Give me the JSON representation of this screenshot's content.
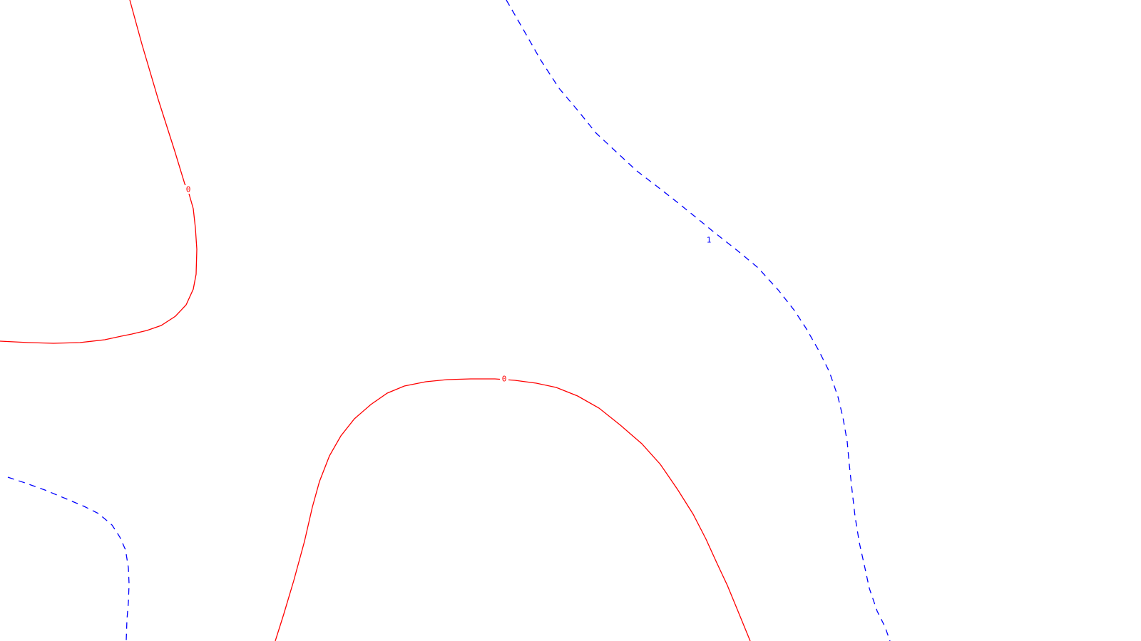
{
  "chart_data": {
    "type": "contour",
    "title": "",
    "xlabel": "",
    "ylabel": "",
    "grid": false,
    "legend": "none",
    "levels": [
      {
        "level": "0",
        "color": "#ff0000",
        "line_style": "solid",
        "label_count": 2
      },
      {
        "level": "1",
        "color": "#0000ff",
        "line_style": "dashed",
        "label_count": 1
      }
    ],
    "inline_labels": [
      {
        "text": "0",
        "level": "0",
        "color": "#ff0000"
      },
      {
        "text": "0",
        "level": "0",
        "color": "#ff0000"
      },
      {
        "text": "1",
        "level": "1",
        "color": "#0000ff"
      }
    ]
  }
}
